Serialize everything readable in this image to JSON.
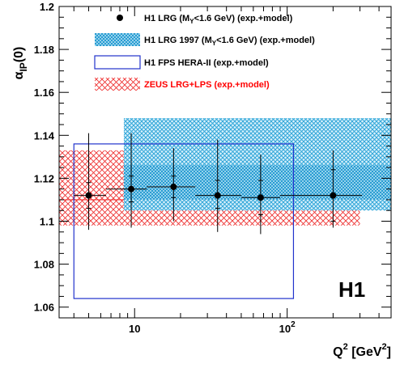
{
  "chart_data": {
    "type": "scatter",
    "xlabel": "Q² [GeV²]",
    "ylabel": "α_IP(0)",
    "x_scale": "log",
    "xlim": [
      3.2,
      480
    ],
    "ylim": [
      1.055,
      1.2
    ],
    "yticks": [
      1.06,
      1.08,
      1.1,
      1.12,
      1.14,
      1.16,
      1.18,
      1.2
    ],
    "ytick_labels": [
      "1.06",
      "1.08",
      "1.1",
      "1.12",
      "1.14",
      "1.16",
      "1.18",
      "1.2"
    ],
    "xtick_labels": [
      {
        "x": 10,
        "label": "10",
        "sup": ""
      },
      {
        "x": 100,
        "label": "10",
        "sup": "2"
      }
    ],
    "grid": false,
    "legend_position": "top-left",
    "legend": [
      {
        "key": "h1_lrg",
        "main": "H1 LRG (M",
        "sub": "Y",
        "rest": "<1.6 GeV)  (exp.+model)",
        "color": "#000000"
      },
      {
        "key": "h1_lrg_1997",
        "main": "H1 LRG 1997 (M",
        "sub": "Y",
        "rest": "<1.6 GeV)  (exp.+model)",
        "color": "#000000"
      },
      {
        "key": "h1_fps",
        "main": "H1 FPS HERA-II  (exp.+model)",
        "sub": "",
        "rest": "",
        "color": "#000000"
      },
      {
        "key": "zeus",
        "main": "ZEUS LRG+LPS (exp.+model)",
        "sub": "",
        "rest": "",
        "color": "#ff0000"
      }
    ],
    "badge": "H1",
    "h1_lrg_points": [
      {
        "x": 5,
        "y": 1.112,
        "xlo": 4,
        "xhi": 6.5,
        "stat_lo": 1.106,
        "stat_hi": 1.118,
        "tot_lo": 1.096,
        "tot_hi": 1.141
      },
      {
        "x": 9.5,
        "y": 1.115,
        "xlo": 6.5,
        "xhi": 12,
        "stat_lo": 1.109,
        "stat_hi": 1.121,
        "tot_lo": 1.097,
        "tot_hi": 1.141
      },
      {
        "x": 18,
        "y": 1.116,
        "xlo": 12,
        "xhi": 25,
        "stat_lo": 1.111,
        "stat_hi": 1.121,
        "tot_lo": 1.1,
        "tot_hi": 1.134
      },
      {
        "x": 35,
        "y": 1.112,
        "xlo": 25,
        "xhi": 50,
        "stat_lo": 1.106,
        "stat_hi": 1.119,
        "tot_lo": 1.095,
        "tot_hi": 1.138
      },
      {
        "x": 67,
        "y": 1.111,
        "xlo": 50,
        "xhi": 90,
        "stat_lo": 1.103,
        "stat_hi": 1.119,
        "tot_lo": 1.094,
        "tot_hi": 1.131
      },
      {
        "x": 200,
        "y": 1.112,
        "xlo": 90,
        "xhi": 310,
        "stat_lo": 1.1,
        "stat_hi": 1.124,
        "tot_lo": 1.097,
        "tot_hi": 1.133
      }
    ],
    "h1_lrg_1997_band": {
      "x0": 8.5,
      "x1": 480,
      "outer": [
        1.105,
        1.148
      ],
      "inner": [
        1.11,
        1.126
      ],
      "color": "#33aadd"
    },
    "h1_fps_box": {
      "x0": 4,
      "x1": 110,
      "y0": 1.064,
      "y1": 1.136,
      "color": "#2233cc"
    },
    "zeus_band": {
      "x0": 3.2,
      "x1": 300,
      "y0": 1.098,
      "y1": 1.133,
      "center": 1.11,
      "color": "#ee2222"
    }
  }
}
